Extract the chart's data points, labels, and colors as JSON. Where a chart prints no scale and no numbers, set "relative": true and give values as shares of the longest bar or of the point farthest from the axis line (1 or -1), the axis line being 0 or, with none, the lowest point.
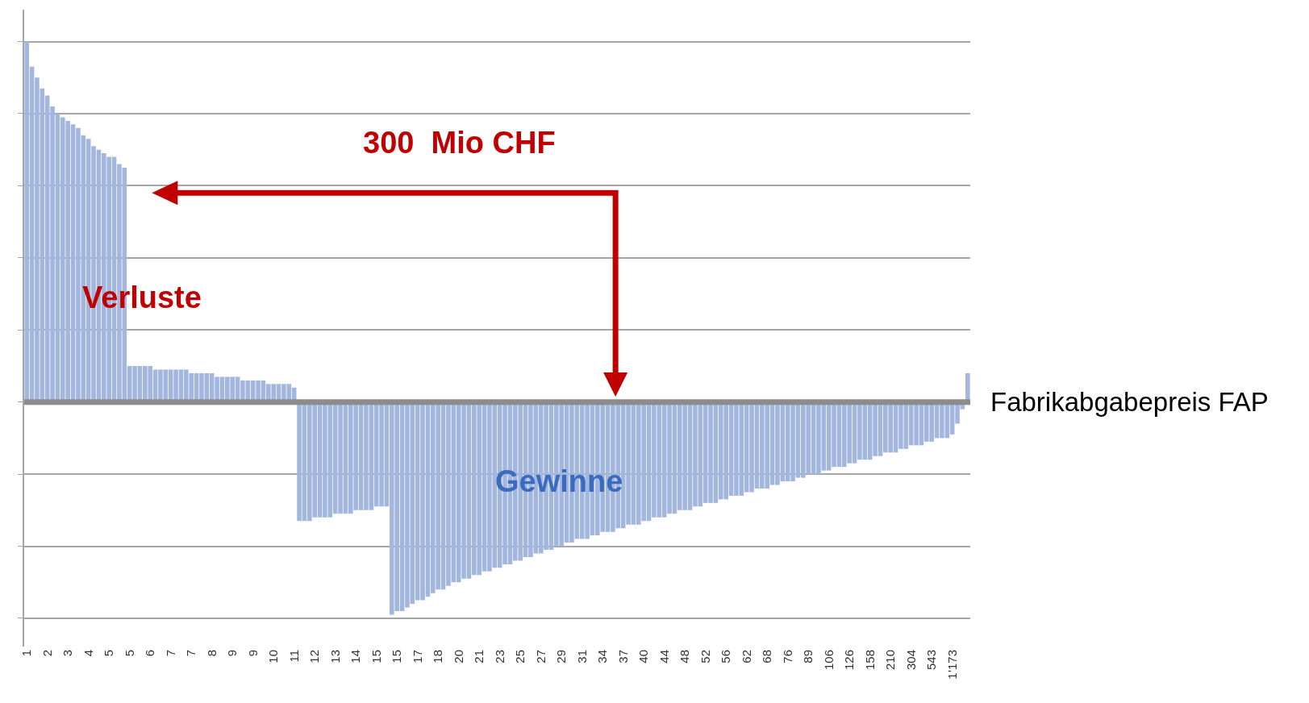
{
  "chart_data": {
    "type": "bar",
    "relative": true,
    "grid": "y",
    "color": "#a3b7de",
    "annotations": [
      "300  Mio CHF",
      "Verluste",
      "Gewinne"
    ],
    "ref_lines": [
      {
        "axis": "y",
        "value": 0,
        "label": "Fabrikabgabepreis FAP",
        "color": "#8c8c8c"
      }
    ],
    "categories": [
      "1",
      null,
      null,
      null,
      "2",
      null,
      null,
      null,
      "3",
      null,
      null,
      null,
      "4",
      null,
      null,
      null,
      "5",
      null,
      null,
      null,
      "5",
      null,
      null,
      null,
      "6",
      null,
      null,
      null,
      "7",
      null,
      null,
      null,
      "7",
      null,
      null,
      null,
      "8",
      null,
      null,
      null,
      "9",
      null,
      null,
      null,
      "9",
      null,
      null,
      null,
      "10",
      null,
      null,
      null,
      "11",
      null,
      null,
      null,
      "12",
      null,
      null,
      null,
      "13",
      null,
      null,
      null,
      "14",
      null,
      null,
      null,
      "15",
      null,
      null,
      null,
      "15",
      null,
      null,
      null,
      "17",
      null,
      null,
      null,
      "18",
      null,
      null,
      null,
      "20",
      null,
      null,
      null,
      "21",
      null,
      null,
      null,
      "23",
      null,
      null,
      null,
      "25",
      null,
      null,
      null,
      "27",
      null,
      null,
      null,
      "29",
      null,
      null,
      null,
      "31",
      null,
      null,
      null,
      "34",
      null,
      null,
      null,
      "37",
      null,
      null,
      null,
      "40",
      null,
      null,
      null,
      "44",
      null,
      null,
      null,
      "48",
      null,
      null,
      null,
      "52",
      null,
      null,
      null,
      "56",
      null,
      null,
      null,
      "62",
      null,
      null,
      null,
      "68",
      null,
      null,
      null,
      "76",
      null,
      null,
      null,
      "89",
      null,
      null,
      null,
      "106",
      null,
      null,
      null,
      "126",
      null,
      null,
      null,
      "158",
      null,
      null,
      null,
      "210",
      null,
      null,
      null,
      "304",
      null,
      null,
      null,
      "543",
      null,
      null,
      null,
      "1’173",
      null,
      null,
      null
    ],
    "values": [
      1,
      0.93,
      0.9,
      0.87,
      0.85,
      0.82,
      0.8,
      0.79,
      0.78,
      0.77,
      0.76,
      0.74,
      0.73,
      0.71,
      0.7,
      0.69,
      0.68,
      0.68,
      0.66,
      0.65,
      0.1,
      0.1,
      0.1,
      0.1,
      0.1,
      0.09,
      0.09,
      0.09,
      0.09,
      0.09,
      0.09,
      0.09,
      0.08,
      0.08,
      0.08,
      0.08,
      0.08,
      0.07,
      0.07,
      0.07,
      0.07,
      0.07,
      0.06,
      0.06,
      0.06,
      0.06,
      0.06,
      0.05,
      0.05,
      0.05,
      0.05,
      0.05,
      0.04,
      -0.33,
      -0.33,
      -0.33,
      -0.32,
      -0.32,
      -0.32,
      -0.32,
      -0.31,
      -0.31,
      -0.31,
      -0.31,
      -0.3,
      -0.3,
      -0.3,
      -0.3,
      -0.29,
      -0.29,
      -0.29,
      -0.59,
      -0.58,
      -0.58,
      -0.57,
      -0.56,
      -0.55,
      -0.55,
      -0.54,
      -0.53,
      -0.52,
      -0.52,
      -0.51,
      -0.5,
      -0.5,
      -0.49,
      -0.49,
      -0.48,
      -0.48,
      -0.47,
      -0.47,
      -0.46,
      -0.46,
      -0.45,
      -0.45,
      -0.44,
      -0.44,
      -0.43,
      -0.43,
      -0.42,
      -0.42,
      -0.41,
      -0.41,
      -0.4,
      -0.4,
      -0.39,
      -0.39,
      -0.38,
      -0.38,
      -0.38,
      -0.37,
      -0.37,
      -0.36,
      -0.36,
      -0.36,
      -0.35,
      -0.35,
      -0.34,
      -0.34,
      -0.34,
      -0.33,
      -0.33,
      -0.32,
      -0.32,
      -0.32,
      -0.31,
      -0.31,
      -0.3,
      -0.3,
      -0.3,
      -0.29,
      -0.29,
      -0.28,
      -0.28,
      -0.28,
      -0.27,
      -0.27,
      -0.26,
      -0.26,
      -0.26,
      -0.25,
      -0.25,
      -0.24,
      -0.24,
      -0.24,
      -0.23,
      -0.23,
      -0.22,
      -0.22,
      -0.22,
      -0.21,
      -0.21,
      -0.2,
      -0.2,
      -0.2,
      -0.19,
      -0.19,
      -0.18,
      -0.18,
      -0.18,
      -0.17,
      -0.17,
      -0.16,
      -0.16,
      -0.16,
      -0.15,
      -0.15,
      -0.14,
      -0.14,
      -0.14,
      -0.13,
      -0.13,
      -0.12,
      -0.12,
      -0.12,
      -0.11,
      -0.11,
      -0.1,
      -0.1,
      -0.1,
      -0.09,
      -0.06,
      -0.02,
      0.08
    ]
  }
}
